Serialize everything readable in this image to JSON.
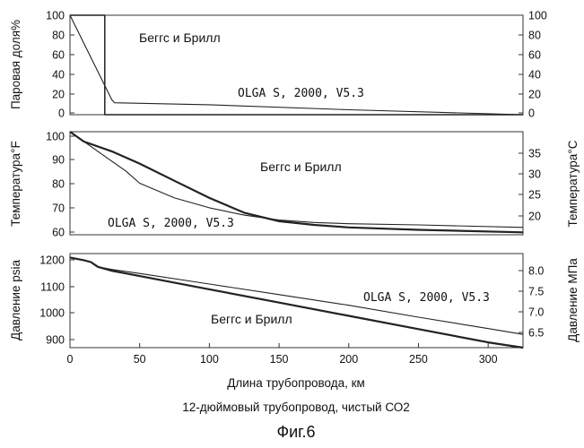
{
  "chart_data": [
    {
      "type": "line",
      "ylabel_left": "Паровая доля%",
      "ylabel_right": "",
      "xlim": [
        0,
        325
      ],
      "ylim": [
        0,
        100
      ],
      "y_ticks_left": [
        "100",
        "80",
        "60",
        "40",
        "20",
        "0"
      ],
      "y_ticks_right": [
        "100",
        "80",
        "60",
        "40",
        "20",
        "0"
      ],
      "annotations": [
        "Беггс и Брилл",
        "OLGA S, 2000, V5.3"
      ],
      "series": [
        {
          "name": "Беггс и Брилл",
          "x": [
            0,
            25,
            25,
            325
          ],
          "y": [
            100,
            100,
            0,
            0
          ]
        },
        {
          "name": "OLGA S, 2000, V5.3",
          "x": [
            0,
            30,
            32,
            100,
            200,
            325
          ],
          "y": [
            100,
            15,
            12,
            10,
            5,
            0
          ]
        }
      ]
    },
    {
      "type": "line",
      "ylabel_left": "Температура°F",
      "ylabel_right": "Температура°C",
      "xlim": [
        0,
        325
      ],
      "ylim": [
        58,
        100
      ],
      "y_ticks_left": [
        "100",
        "90",
        "80",
        "70",
        "60"
      ],
      "y_ticks_right": [
        "35",
        "30",
        "25",
        "20"
      ],
      "annotations": [
        "Беггс и Брилл",
        "OLGA S, 2000, V5.3"
      ],
      "series": [
        {
          "name": "Беггс и Брилл",
          "x": [
            0,
            10,
            30,
            50,
            75,
            100,
            125,
            150,
            175,
            200,
            250,
            325
          ],
          "y": [
            100,
            96,
            92,
            87,
            80,
            73,
            67,
            63.5,
            62,
            61,
            60,
            59
          ]
        },
        {
          "name": "OLGA S, 2000, V5.3",
          "x": [
            0,
            15,
            30,
            40,
            50,
            75,
            100,
            125,
            150,
            175,
            200,
            250,
            325
          ],
          "y": [
            100,
            94,
            88,
            84,
            79,
            73,
            69,
            66,
            64,
            63,
            62.5,
            62,
            61
          ]
        }
      ]
    },
    {
      "type": "line",
      "ylabel_left": "Давление psia",
      "ylabel_right": "Давление МПа",
      "xlabel": "Длина трубопровода, км",
      "xlim": [
        0,
        325
      ],
      "ylim": [
        860,
        1215
      ],
      "x_ticks": [
        "0",
        "50",
        "100",
        "150",
        "200",
        "250",
        "300"
      ],
      "y_ticks_left": [
        "1200",
        "1100",
        "1000",
        "900"
      ],
      "y_ticks_right": [
        "8.0",
        "7.5",
        "7.0",
        "6.5"
      ],
      "annotations": [
        "OLGA S, 2000, V5.3",
        "Беггс и Брилл"
      ],
      "series": [
        {
          "name": "Беггс и Брилл",
          "x": [
            0,
            10,
            15,
            20,
            30,
            50,
            100,
            150,
            200,
            250,
            300,
            325
          ],
          "y": [
            1200,
            1190,
            1183,
            1165,
            1150,
            1130,
            1080,
            1030,
            980,
            930,
            880,
            860
          ]
        },
        {
          "name": "OLGA S, 2000, V5.3",
          "x": [
            0,
            10,
            15,
            20,
            30,
            50,
            100,
            150,
            200,
            250,
            300,
            325
          ],
          "y": [
            1200,
            1190,
            1183,
            1165,
            1155,
            1140,
            1100,
            1060,
            1020,
            975,
            932,
            910
          ]
        }
      ]
    }
  ],
  "caption": "12-дюймовый трубопровод, чистый СО2",
  "figure_label": "Фиг.6"
}
